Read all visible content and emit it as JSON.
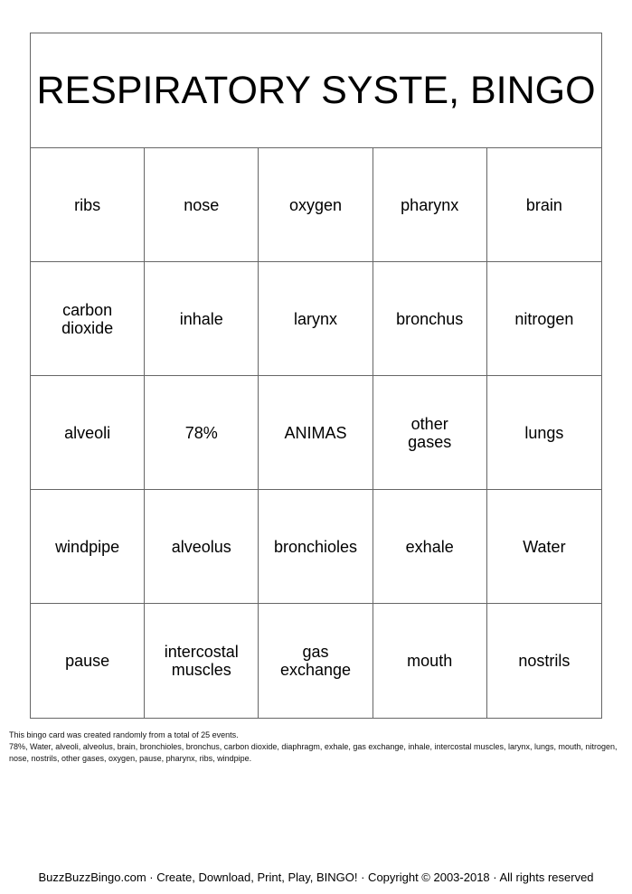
{
  "title": "RESPIRATORY SYSTE, BINGO",
  "cells": [
    "ribs",
    "nose",
    "oxygen",
    "pharynx",
    "brain",
    "carbon dioxide",
    "inhale",
    "larynx",
    "bronchus",
    "nitrogen",
    "alveoli",
    "78%",
    "ANIMAS",
    "other gases",
    "lungs",
    "windpipe",
    "alveolus",
    "bronchioles",
    "exhale",
    "Water",
    "pause",
    "intercostal muscles",
    "gas exchange",
    "mouth",
    "nostrils"
  ],
  "note": {
    "line1": "This bingo card was created randomly from a total of 25 events.",
    "line2": "78%, Water, alveoli, alveolus, brain, bronchioles, bronchus, carbon dioxide, diaphragm, exhale, gas exchange, inhale, intercostal muscles, larynx, lungs, mouth, nitrogen, nose, nostrils, other gases, oxygen, pause, pharynx, ribs, windpipe."
  },
  "footer": "BuzzBuzzBingo.com · Create, Download, Print, Play, BINGO! · Copyright © 2003-2018 · All rights reserved"
}
